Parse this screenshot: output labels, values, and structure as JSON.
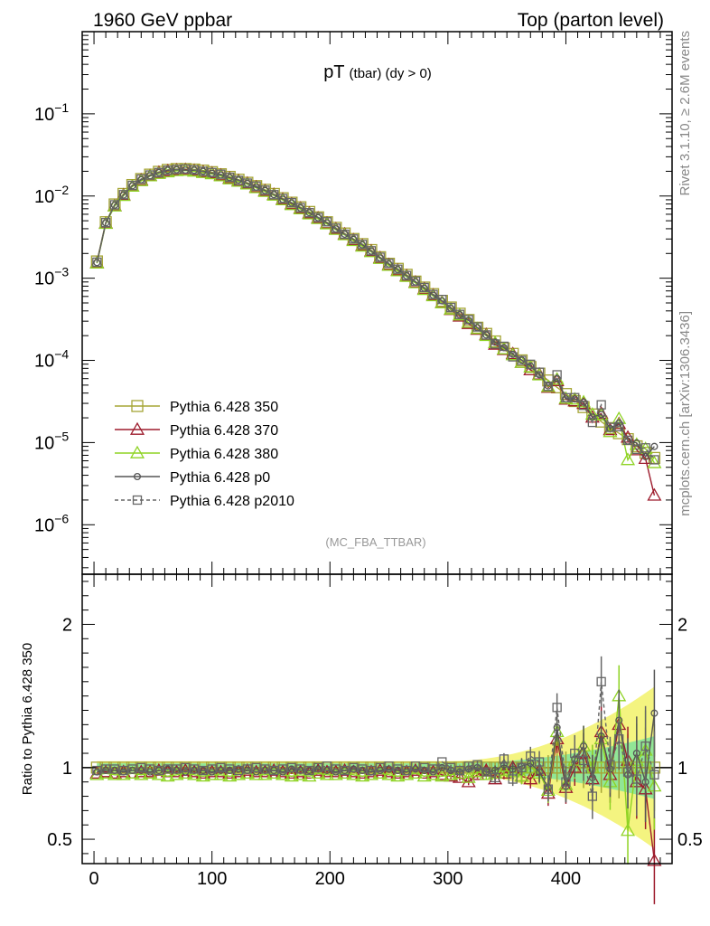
{
  "header": {
    "left": "1960 GeV ppbar",
    "right": "Top (parton level)"
  },
  "side_labels": {
    "rivet": "Rivet 3.1.10, ≥ 2.6M events",
    "mcplots": "mcplots.cern.ch [arXiv:1306.3436]"
  },
  "chart_data": [
    {
      "type": "line",
      "title_main": "pT",
      "title_sub": "(tbar) (dy > 0)",
      "annotation": "(MC_FBA_TTBAR)",
      "yscale": "log",
      "xlim": [
        -10,
        490
      ],
      "ylim": [
        2.5e-07,
        1.0
      ],
      "yticks": [
        {
          "v": 1e-06,
          "base": "10",
          "exp": "−6"
        },
        {
          "v": 1e-05,
          "base": "10",
          "exp": "−5"
        },
        {
          "v": 0.0001,
          "base": "10",
          "exp": "−4"
        },
        {
          "v": 0.001,
          "base": "10",
          "exp": "−3"
        },
        {
          "v": 0.01,
          "base": "10",
          "exp": "−2"
        },
        {
          "v": 0.1,
          "base": "10",
          "exp": "−1"
        }
      ],
      "legend_position": "bottom-left",
      "series": [
        {
          "name": "Pythia 6.428 350",
          "color": "#a5a535",
          "marker": "square",
          "dash": false
        },
        {
          "name": "Pythia 6.428 370",
          "color": "#9d1c2d",
          "marker": "triangle",
          "dash": false
        },
        {
          "name": "Pythia 6.428 380",
          "color": "#8fd324",
          "marker": "triangle",
          "dash": false
        },
        {
          "name": "Pythia 6.428 p0",
          "color": "#555555",
          "marker": "circle",
          "dash": false
        },
        {
          "name": "Pythia 6.428 p2010",
          "color": "#666666",
          "marker": "square",
          "dash": true
        }
      ],
      "x": [
        2.5,
        10,
        17.5,
        25,
        32.5,
        40,
        47.5,
        55,
        62.5,
        70,
        77.5,
        85,
        92.5,
        100,
        107.5,
        115,
        122.5,
        130,
        137.5,
        145,
        152.5,
        160,
        167.5,
        175,
        182.5,
        190,
        197.5,
        205,
        212.5,
        220,
        227.5,
        235,
        242.5,
        250,
        257.5,
        265,
        272.5,
        280,
        287.5,
        295,
        302.5,
        310,
        317.5,
        325,
        332.5,
        340,
        347.5,
        355,
        362.5,
        370,
        377.5,
        385,
        392.5,
        400,
        407.5,
        415,
        422.5,
        430,
        437.5,
        445,
        452.5,
        460,
        467.5,
        475
      ],
      "reference_values": [
        0.0016,
        0.0048,
        0.0079,
        0.0106,
        0.0136,
        0.0161,
        0.0182,
        0.0197,
        0.0208,
        0.0213,
        0.0213,
        0.021,
        0.0204,
        0.0195,
        0.0184,
        0.0171,
        0.0158,
        0.0145,
        0.0132,
        0.0119,
        0.0106,
        0.0094,
        0.0083,
        0.0073,
        0.0064,
        0.0055,
        0.0048,
        0.0041,
        0.0035,
        0.003,
        0.0026,
        0.0022,
        0.0018,
        0.0015,
        0.0013,
        0.0011,
        0.00091,
        0.00077,
        0.00064,
        0.00053,
        0.00044,
        0.00037,
        0.00031,
        0.00025,
        0.00021,
        0.00017,
        0.00014,
        0.00012,
        0.0001,
        8.3e-05,
        6.9e-05,
        5.7e-05,
        4.7e-05,
        3.9e-05,
        3.2e-05,
        2.7e-05,
        2.2e-05,
        1.8e-05,
        1.5e-05,
        1.3e-05,
        1.1e-05,
        9e-06,
        7.5e-06,
        6.5e-06
      ]
    },
    {
      "type": "line",
      "ylabel": "Ratio to Pythia 6.428 350",
      "xlim": [
        -10,
        490
      ],
      "ylim": [
        0.33,
        2.35
      ],
      "xticks": [
        0,
        100,
        200,
        300,
        400
      ],
      "yticks": [
        0.5,
        1,
        2
      ],
      "x": [
        2.5,
        10,
        17.5,
        25,
        32.5,
        40,
        47.5,
        55,
        62.5,
        70,
        77.5,
        85,
        92.5,
        100,
        107.5,
        115,
        122.5,
        130,
        137.5,
        145,
        152.5,
        160,
        167.5,
        175,
        182.5,
        190,
        197.5,
        205,
        212.5,
        220,
        227.5,
        235,
        242.5,
        250,
        257.5,
        265,
        272.5,
        280,
        287.5,
        295,
        302.5,
        310,
        317.5,
        325,
        332.5,
        340,
        347.5,
        355,
        362.5,
        370,
        377.5,
        385,
        392.5,
        400,
        407.5,
        415,
        422.5,
        430,
        437.5,
        445,
        452.5,
        460,
        467.5,
        475
      ],
      "series": [
        {
          "name": "Pythia 6.428 350",
          "values": [
            1,
            1,
            1,
            1,
            1,
            1,
            1,
            1,
            1,
            1,
            1,
            1,
            1,
            1,
            1,
            1,
            1,
            1,
            1,
            1,
            1,
            1,
            1,
            1,
            1,
            1,
            1,
            1,
            1,
            1,
            1,
            1,
            1,
            1,
            1,
            1,
            1,
            1,
            1,
            1,
            1,
            1,
            1,
            1,
            1,
            1,
            1,
            1,
            1,
            1,
            1,
            1,
            1,
            1,
            1,
            1,
            1,
            1,
            1,
            1,
            1,
            1,
            1,
            1
          ]
        },
        {
          "name": "Pythia 6.428 370",
          "values": [
            0.96,
            0.97,
            0.96,
            0.97,
            0.96,
            0.97,
            0.97,
            0.98,
            0.97,
            0.97,
            0.98,
            0.97,
            0.96,
            0.97,
            0.97,
            0.96,
            0.97,
            0.98,
            0.97,
            0.97,
            0.98,
            0.97,
            0.96,
            0.97,
            0.96,
            0.98,
            0.97,
            0.97,
            0.98,
            0.97,
            0.96,
            0.97,
            0.98,
            0.97,
            0.96,
            0.97,
            0.98,
            0.96,
            0.97,
            0.95,
            0.94,
            0.93,
            0.9,
            0.95,
            0.98,
            0.92,
            0.96,
            1.0,
            0.94,
            0.92,
            0.98,
            0.82,
            1.2,
            0.86,
            1.0,
            1.1,
            0.92,
            1.25,
            0.95,
            1.3,
            1.05,
            0.9,
            0.85,
            0.35
          ]
        },
        {
          "name": "Pythia 6.428 380",
          "values": [
            0.95,
            0.96,
            0.95,
            0.95,
            0.96,
            0.95,
            0.96,
            0.95,
            0.94,
            0.95,
            0.96,
            0.95,
            0.94,
            0.95,
            0.95,
            0.94,
            0.95,
            0.96,
            0.95,
            0.95,
            0.96,
            0.95,
            0.94,
            0.95,
            0.94,
            0.96,
            0.95,
            0.95,
            0.96,
            0.95,
            0.94,
            0.95,
            0.96,
            0.95,
            0.94,
            0.95,
            0.96,
            0.94,
            0.95,
            0.94,
            0.95,
            0.96,
            0.93,
            0.97,
            0.95,
            0.96,
            0.98,
            0.97,
            0.94,
            1.0,
            0.96,
            0.84,
            1.25,
            0.88,
            1.05,
            1.15,
            1.0,
            1.2,
            0.9,
            1.5,
            0.56,
            1.05,
            1.12,
            0.87
          ]
        },
        {
          "name": "Pythia 6.428 p0",
          "values": [
            0.97,
            0.98,
            0.98,
            0.97,
            0.98,
            0.98,
            0.97,
            0.98,
            0.99,
            0.98,
            0.97,
            0.98,
            0.98,
            0.97,
            0.98,
            0.98,
            0.99,
            0.98,
            0.97,
            0.98,
            0.98,
            0.97,
            0.99,
            0.98,
            0.98,
            0.99,
            0.98,
            0.97,
            0.98,
            0.99,
            0.98,
            0.97,
            0.98,
            0.99,
            0.98,
            0.97,
            0.99,
            0.98,
            0.97,
            1.0,
            0.98,
            0.97,
            0.99,
            1.0,
            0.97,
            0.98,
            1.02,
            0.99,
            1.01,
            1.03,
            0.97,
            0.86,
            1.28,
            0.87,
            1.06,
            1.15,
            0.93,
            1.22,
            0.99,
            1.33,
            0.95,
            1.1,
            0.9,
            1.38
          ]
        },
        {
          "name": "Pythia 6.428 p2010",
          "values": [
            0.98,
            0.99,
            0.99,
            0.98,
            0.99,
            1.0,
            0.99,
            0.98,
            0.99,
            0.99,
            1.0,
            0.99,
            0.98,
            0.99,
            1.0,
            0.99,
            0.98,
            0.99,
            1.0,
            0.99,
            0.98,
            0.99,
            1.0,
            0.99,
            0.98,
            1.0,
            1.01,
            0.99,
            0.98,
            1.0,
            0.99,
            0.98,
            1.0,
            1.01,
            0.99,
            0.98,
            1.01,
            1.0,
            0.99,
            1.04,
            1.0,
            0.98,
            1.01,
            1.02,
            0.97,
            0.93,
            1.06,
            0.92,
            1.0,
            1.08,
            1.04,
            0.85,
            1.42,
            0.9,
            1.1,
            1.05,
            0.8,
            1.6,
            1.02,
            1.2,
            0.97,
            0.92,
            1.15,
            0.95
          ]
        }
      ]
    }
  ]
}
